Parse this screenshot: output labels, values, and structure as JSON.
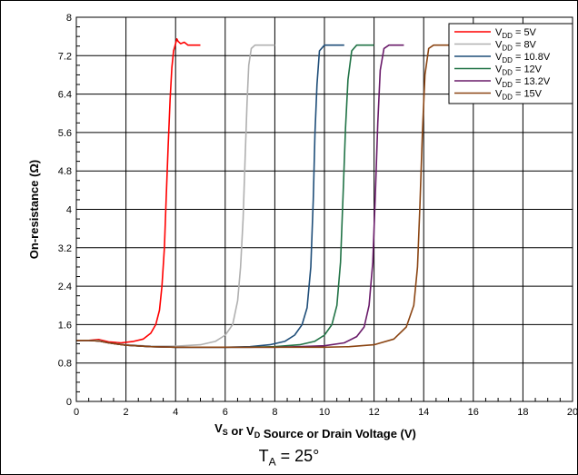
{
  "footnote": {
    "main": "T",
    "sub": "A",
    "rest": " = 25°"
  },
  "chart_data": {
    "type": "line",
    "title": "",
    "xlabel": {
      "parts": [
        {
          "t": "V"
        },
        {
          "t": "S",
          "sub": true
        },
        {
          "t": " or V"
        },
        {
          "t": "D",
          "sub": true
        },
        {
          "t": " Source or Drain Voltage (V)"
        }
      ]
    },
    "ylabel": "On-resistance (Ω)",
    "xlim": [
      0,
      20
    ],
    "ylim": [
      0,
      8
    ],
    "xticks": [
      0,
      2,
      4,
      6,
      8,
      10,
      12,
      14,
      16,
      18,
      20
    ],
    "xtick_labels": [
      "0",
      "2",
      "4",
      "6",
      "8",
      "10",
      "12",
      "14",
      "16",
      "18",
      "20"
    ],
    "yticks": [
      0,
      0.8,
      1.6,
      2.4,
      3.2,
      4,
      4.8,
      5.6,
      6.4,
      7.2,
      8
    ],
    "ytick_labels": [
      "0",
      "0.8",
      "1.6",
      "2.4",
      "3.2",
      "4",
      "4.8",
      "5.6",
      "6.4",
      "7.2",
      "8"
    ],
    "grid": true,
    "legend_position": "top-right",
    "series": [
      {
        "name": "5V",
        "label_main": "V",
        "label_sub": "DD",
        "label_rest": " = 5V",
        "color": "#ff0000",
        "x": [
          0,
          0.5,
          0.9,
          1.3,
          1.8,
          2.3,
          2.7,
          3.0,
          3.2,
          3.35,
          3.45,
          3.55,
          3.62,
          3.7,
          3.78,
          3.85,
          3.92,
          4.0,
          4.05,
          4.1,
          4.2,
          4.35,
          4.5,
          5.0
        ],
        "y": [
          1.27,
          1.27,
          1.29,
          1.24,
          1.22,
          1.25,
          1.3,
          1.42,
          1.6,
          1.9,
          2.4,
          3.2,
          4.2,
          5.3,
          6.3,
          6.95,
          7.3,
          7.45,
          7.55,
          7.5,
          7.45,
          7.48,
          7.42,
          7.42
        ]
      },
      {
        "name": "8V",
        "label_main": "V",
        "label_sub": "DD",
        "label_rest": " = 8V",
        "color": "#b0b0b0",
        "x": [
          0,
          0.5,
          0.9,
          1.3,
          2.0,
          3.0,
          4.0,
          5.0,
          5.6,
          6.0,
          6.3,
          6.5,
          6.62,
          6.72,
          6.8,
          6.88,
          6.95,
          7.05,
          7.2,
          7.5,
          8.0
        ],
        "y": [
          1.27,
          1.27,
          1.27,
          1.22,
          1.18,
          1.15,
          1.15,
          1.18,
          1.25,
          1.38,
          1.6,
          2.1,
          2.8,
          3.8,
          5.0,
          6.2,
          7.0,
          7.35,
          7.42,
          7.42,
          7.42
        ]
      },
      {
        "name": "10.8V",
        "label_main": "V",
        "label_sub": "DD",
        "label_rest": " = 10.8V",
        "color": "#1f4e79",
        "x": [
          0,
          0.5,
          0.9,
          1.3,
          2.0,
          3.0,
          4.0,
          5.0,
          6.0,
          7.0,
          7.8,
          8.4,
          8.8,
          9.1,
          9.3,
          9.45,
          9.55,
          9.62,
          9.7,
          9.8,
          10.0,
          10.5,
          10.8
        ],
        "y": [
          1.27,
          1.27,
          1.26,
          1.22,
          1.17,
          1.14,
          1.13,
          1.13,
          1.13,
          1.14,
          1.18,
          1.25,
          1.38,
          1.6,
          1.95,
          2.8,
          4.2,
          5.6,
          6.6,
          7.3,
          7.42,
          7.42,
          7.42
        ]
      },
      {
        "name": "12V",
        "label_main": "V",
        "label_sub": "DD",
        "label_rest": " = 12V",
        "color": "#217346",
        "x": [
          0,
          0.5,
          0.9,
          1.3,
          2.0,
          3.0,
          4.0,
          5.0,
          6.0,
          7.0,
          8.0,
          9.0,
          9.6,
          10.0,
          10.3,
          10.5,
          10.65,
          10.75,
          10.85,
          10.95,
          11.1,
          11.3,
          12.0
        ],
        "y": [
          1.27,
          1.27,
          1.26,
          1.22,
          1.17,
          1.14,
          1.13,
          1.13,
          1.13,
          1.13,
          1.14,
          1.18,
          1.25,
          1.38,
          1.6,
          2.0,
          2.9,
          4.3,
          5.7,
          6.7,
          7.3,
          7.42,
          7.42
        ]
      },
      {
        "name": "13.2V",
        "label_main": "V",
        "label_sub": "DD",
        "label_rest": " = 13.2V",
        "color": "#6a1b6a",
        "x": [
          0,
          0.5,
          0.9,
          1.3,
          2.0,
          3.0,
          4.0,
          5.0,
          6.0,
          7.0,
          8.0,
          9.0,
          10.0,
          10.8,
          11.3,
          11.6,
          11.8,
          11.95,
          12.05,
          12.15,
          12.25,
          12.4,
          12.6,
          13.2
        ],
        "y": [
          1.27,
          1.27,
          1.26,
          1.22,
          1.17,
          1.14,
          1.13,
          1.13,
          1.13,
          1.13,
          1.13,
          1.14,
          1.16,
          1.22,
          1.35,
          1.55,
          2.0,
          2.9,
          4.3,
          5.8,
          6.9,
          7.35,
          7.42,
          7.42
        ]
      },
      {
        "name": "15V",
        "label_main": "V",
        "label_sub": "DD",
        "label_rest": " = 15V",
        "color": "#8b4513",
        "x": [
          0,
          0.5,
          0.9,
          1.3,
          2.0,
          3.0,
          4.0,
          5.0,
          6.0,
          7.0,
          8.0,
          9.0,
          10.0,
          11.0,
          12.0,
          12.8,
          13.3,
          13.6,
          13.75,
          13.85,
          13.95,
          14.05,
          14.2,
          14.4,
          15.0
        ],
        "y": [
          1.27,
          1.27,
          1.26,
          1.22,
          1.17,
          1.14,
          1.13,
          1.13,
          1.13,
          1.13,
          1.13,
          1.13,
          1.13,
          1.14,
          1.18,
          1.3,
          1.55,
          2.0,
          2.8,
          4.1,
          5.6,
          6.8,
          7.35,
          7.42,
          7.42
        ]
      }
    ]
  }
}
